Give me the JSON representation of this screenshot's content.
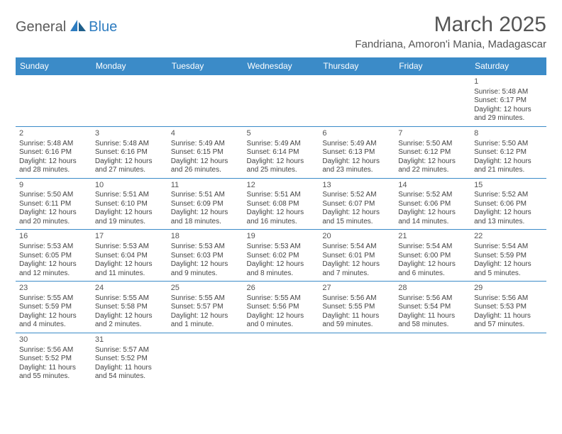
{
  "logo": {
    "part1": "General",
    "part2": "Blue"
  },
  "title": "March 2025",
  "location": "Fandriana, Amoron'i Mania, Madagascar",
  "colors": {
    "header_bg": "#3b8bc8",
    "header_text": "#ffffff",
    "cell_border": "#3b8bc8",
    "text": "#444444",
    "title_text": "#555555",
    "logo_gray": "#5a5a5a",
    "logo_blue": "#2d7cc0",
    "background": "#ffffff"
  },
  "day_headers": [
    "Sunday",
    "Monday",
    "Tuesday",
    "Wednesday",
    "Thursday",
    "Friday",
    "Saturday"
  ],
  "weeks": [
    [
      null,
      null,
      null,
      null,
      null,
      null,
      {
        "n": "1",
        "sr": "5:48 AM",
        "ss": "6:17 PM",
        "dl": "12 hours and 29 minutes."
      }
    ],
    [
      {
        "n": "2",
        "sr": "5:48 AM",
        "ss": "6:16 PM",
        "dl": "12 hours and 28 minutes."
      },
      {
        "n": "3",
        "sr": "5:48 AM",
        "ss": "6:16 PM",
        "dl": "12 hours and 27 minutes."
      },
      {
        "n": "4",
        "sr": "5:49 AM",
        "ss": "6:15 PM",
        "dl": "12 hours and 26 minutes."
      },
      {
        "n": "5",
        "sr": "5:49 AM",
        "ss": "6:14 PM",
        "dl": "12 hours and 25 minutes."
      },
      {
        "n": "6",
        "sr": "5:49 AM",
        "ss": "6:13 PM",
        "dl": "12 hours and 23 minutes."
      },
      {
        "n": "7",
        "sr": "5:50 AM",
        "ss": "6:12 PM",
        "dl": "12 hours and 22 minutes."
      },
      {
        "n": "8",
        "sr": "5:50 AM",
        "ss": "6:12 PM",
        "dl": "12 hours and 21 minutes."
      }
    ],
    [
      {
        "n": "9",
        "sr": "5:50 AM",
        "ss": "6:11 PM",
        "dl": "12 hours and 20 minutes."
      },
      {
        "n": "10",
        "sr": "5:51 AM",
        "ss": "6:10 PM",
        "dl": "12 hours and 19 minutes."
      },
      {
        "n": "11",
        "sr": "5:51 AM",
        "ss": "6:09 PM",
        "dl": "12 hours and 18 minutes."
      },
      {
        "n": "12",
        "sr": "5:51 AM",
        "ss": "6:08 PM",
        "dl": "12 hours and 16 minutes."
      },
      {
        "n": "13",
        "sr": "5:52 AM",
        "ss": "6:07 PM",
        "dl": "12 hours and 15 minutes."
      },
      {
        "n": "14",
        "sr": "5:52 AM",
        "ss": "6:06 PM",
        "dl": "12 hours and 14 minutes."
      },
      {
        "n": "15",
        "sr": "5:52 AM",
        "ss": "6:06 PM",
        "dl": "12 hours and 13 minutes."
      }
    ],
    [
      {
        "n": "16",
        "sr": "5:53 AM",
        "ss": "6:05 PM",
        "dl": "12 hours and 12 minutes."
      },
      {
        "n": "17",
        "sr": "5:53 AM",
        "ss": "6:04 PM",
        "dl": "12 hours and 11 minutes."
      },
      {
        "n": "18",
        "sr": "5:53 AM",
        "ss": "6:03 PM",
        "dl": "12 hours and 9 minutes."
      },
      {
        "n": "19",
        "sr": "5:53 AM",
        "ss": "6:02 PM",
        "dl": "12 hours and 8 minutes."
      },
      {
        "n": "20",
        "sr": "5:54 AM",
        "ss": "6:01 PM",
        "dl": "12 hours and 7 minutes."
      },
      {
        "n": "21",
        "sr": "5:54 AM",
        "ss": "6:00 PM",
        "dl": "12 hours and 6 minutes."
      },
      {
        "n": "22",
        "sr": "5:54 AM",
        "ss": "5:59 PM",
        "dl": "12 hours and 5 minutes."
      }
    ],
    [
      {
        "n": "23",
        "sr": "5:55 AM",
        "ss": "5:59 PM",
        "dl": "12 hours and 4 minutes."
      },
      {
        "n": "24",
        "sr": "5:55 AM",
        "ss": "5:58 PM",
        "dl": "12 hours and 2 minutes."
      },
      {
        "n": "25",
        "sr": "5:55 AM",
        "ss": "5:57 PM",
        "dl": "12 hours and 1 minute."
      },
      {
        "n": "26",
        "sr": "5:55 AM",
        "ss": "5:56 PM",
        "dl": "12 hours and 0 minutes."
      },
      {
        "n": "27",
        "sr": "5:56 AM",
        "ss": "5:55 PM",
        "dl": "11 hours and 59 minutes."
      },
      {
        "n": "28",
        "sr": "5:56 AM",
        "ss": "5:54 PM",
        "dl": "11 hours and 58 minutes."
      },
      {
        "n": "29",
        "sr": "5:56 AM",
        "ss": "5:53 PM",
        "dl": "11 hours and 57 minutes."
      }
    ],
    [
      {
        "n": "30",
        "sr": "5:56 AM",
        "ss": "5:52 PM",
        "dl": "11 hours and 55 minutes."
      },
      {
        "n": "31",
        "sr": "5:57 AM",
        "ss": "5:52 PM",
        "dl": "11 hours and 54 minutes."
      },
      null,
      null,
      null,
      null,
      null
    ]
  ],
  "labels": {
    "sunrise": "Sunrise: ",
    "sunset": "Sunset: ",
    "daylight": "Daylight: "
  }
}
